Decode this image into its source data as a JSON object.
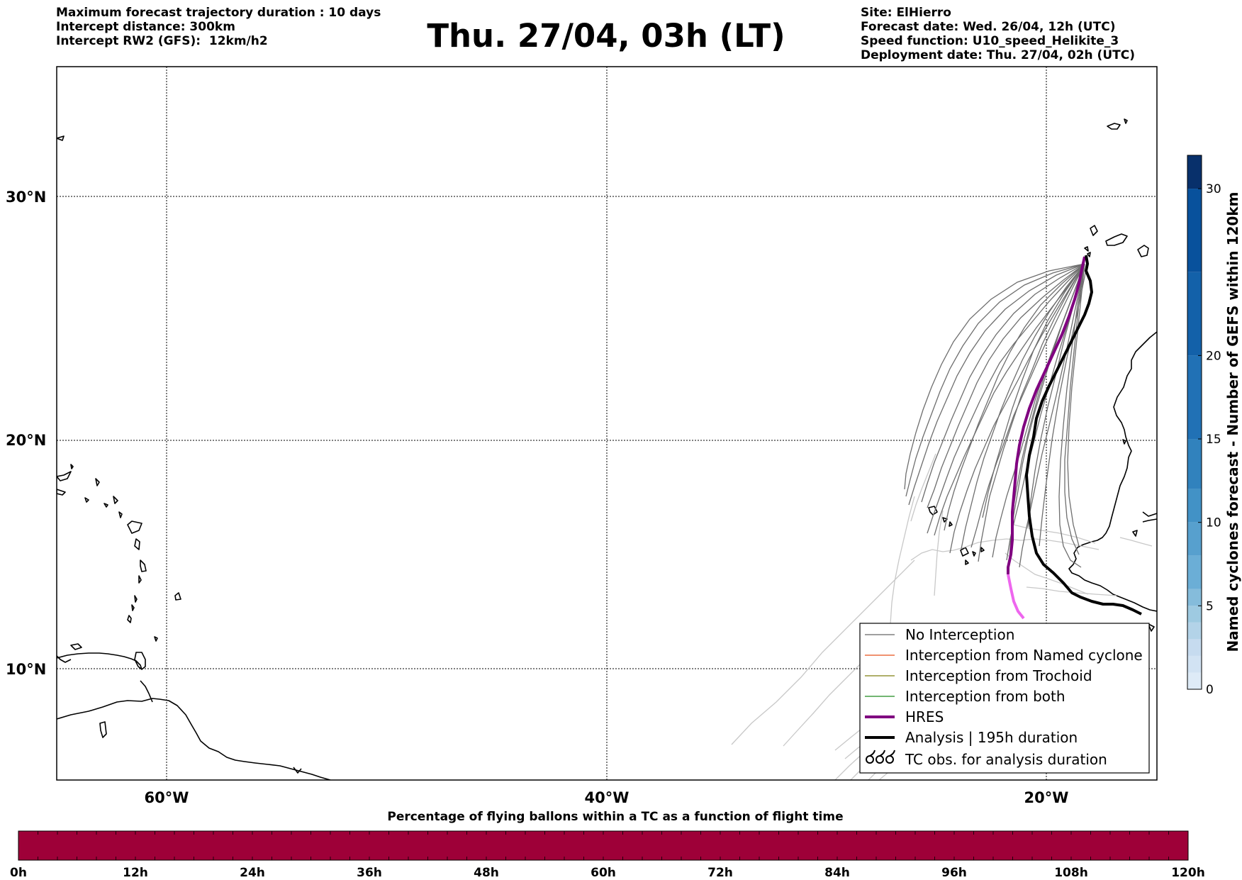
{
  "header": {
    "left_lines": [
      "Maximum forecast trajectory duration : 10 days",
      "Intercept distance: 300km",
      "Intercept RW2 (GFS):  12km/h2"
    ],
    "title": "Thu. 27/04, 03h (LT)",
    "right_lines": [
      "Site: ElHierro",
      "Forecast date: Wed. 26/04, 12h (UTC)",
      "Speed function: U10_speed_Helikite_3",
      "Deployment date: Thu. 27/04, 02h (UTC)"
    ]
  },
  "map": {
    "lon_range": [
      -65,
      -15
    ],
    "lat_range": [
      5.3,
      34.6
    ],
    "lon_gridlines": [
      -60,
      -40,
      -20
    ],
    "lat_gridlines": [
      10,
      20,
      30
    ],
    "lon_labels": [
      "60°W",
      "40°W",
      "20°W"
    ],
    "lat_labels": [
      "10°N",
      "20°N",
      "30°N"
    ],
    "colors": {
      "no_interception": "#666666",
      "named_cyclone": "#e8501a",
      "trochoid": "#7f7f10",
      "both": "#1f8a1f",
      "hres": "#800080",
      "hres_late": "#ee66ee",
      "analysis": "#000000",
      "faded_tracks": "#c8c8c8"
    }
  },
  "legend": {
    "items": [
      {
        "label": "No Interception",
        "style": "thin",
        "color": "#666666"
      },
      {
        "label": "Interception from Named cyclone",
        "style": "thin",
        "color": "#e8501a"
      },
      {
        "label": "Interception from Trochoid",
        "style": "thin",
        "color": "#7f7f10"
      },
      {
        "label": "Interception from both",
        "style": "thin",
        "color": "#1f8a1f"
      },
      {
        "label": "HRES",
        "style": "thick",
        "color": "#800080"
      },
      {
        "label": "Analysis | 195h duration",
        "style": "thick",
        "color": "#000000"
      },
      {
        "label": "TC obs. for analysis duration",
        "style": "symbol",
        "color": "#000000"
      }
    ]
  },
  "right_colorbar": {
    "label": "Named cyclones forecast - Number of GEFS within 120km",
    "ticks": [
      "0",
      "5",
      "10",
      "15",
      "20",
      "30"
    ],
    "tick_values": [
      0,
      5,
      10,
      15,
      20,
      30
    ],
    "range": [
      0,
      32
    ],
    "boundaries": [
      0,
      1,
      2,
      3,
      4,
      5,
      6,
      8,
      10,
      12,
      15,
      20,
      25,
      30,
      32
    ],
    "colors": [
      "#deebf7",
      "#d2e3f3",
      "#c6dbef",
      "#b3d3e8",
      "#9ecae1",
      "#85bcdb",
      "#6baed6",
      "#57a0ce",
      "#4292c6",
      "#3182bd",
      "#2171b5",
      "#1361a9",
      "#08519c",
      "#08306b"
    ]
  },
  "bottom_colorbar": {
    "title": "Percentage of flying ballons within a TC as a function of flight time",
    "ticks": [
      "0h",
      "12h",
      "24h",
      "36h",
      "48h",
      "60h",
      "72h",
      "84h",
      "96h",
      "108h",
      "120h"
    ],
    "fill_color": "#9e0038"
  }
}
